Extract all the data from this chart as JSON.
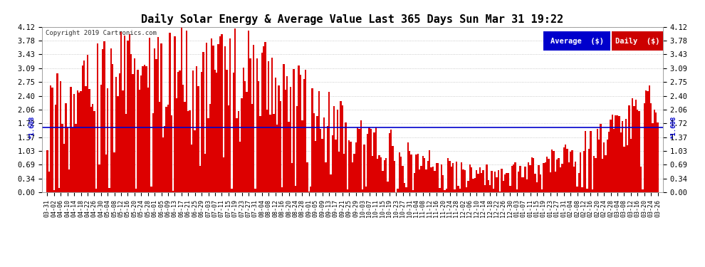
{
  "title": "Daily Solar Energy & Average Value Last 365 Days Sun Mar 31 19:22",
  "copyright": "Copyright 2019 Cartronics.com",
  "average_value": 1.608,
  "bar_color": "#dd0000",
  "average_line_color": "#0000cc",
  "background_color": "#ffffff",
  "plot_bg_color": "#ffffff",
  "yticks": [
    0.0,
    0.34,
    0.69,
    1.03,
    1.37,
    1.72,
    2.06,
    2.4,
    2.75,
    3.09,
    3.43,
    3.78,
    4.12
  ],
  "ylim": [
    0.0,
    4.12
  ],
  "legend_avg_color": "#0000cc",
  "legend_daily_color": "#cc0000",
  "legend_avg_text": "Average  ($)",
  "legend_daily_text": "Daily  ($)",
  "x_labels": [
    "03-31",
    "04-02",
    "04-06",
    "04-10",
    "04-14",
    "04-18",
    "04-22",
    "04-26",
    "04-30",
    "05-04",
    "05-08",
    "05-12",
    "05-16",
    "05-20",
    "05-24",
    "05-28",
    "06-01",
    "06-05",
    "06-09",
    "06-13",
    "06-17",
    "06-21",
    "06-25",
    "06-29",
    "07-03",
    "07-07",
    "07-11",
    "07-15",
    "07-19",
    "07-23",
    "07-27",
    "07-31",
    "08-04",
    "08-08",
    "08-12",
    "08-16",
    "08-20",
    "08-24",
    "08-28",
    "09-01",
    "09-05",
    "09-09",
    "09-13",
    "09-17",
    "09-21",
    "09-25",
    "09-29",
    "10-03",
    "10-07",
    "10-11",
    "10-15",
    "10-19",
    "10-23",
    "10-27",
    "10-31",
    "11-04",
    "11-08",
    "11-12",
    "11-16",
    "11-20",
    "11-24",
    "11-28",
    "12-02",
    "12-06",
    "12-10",
    "12-14",
    "12-18",
    "12-22",
    "12-26",
    "12-30",
    "01-03",
    "01-07",
    "01-11",
    "01-15",
    "01-19",
    "01-23",
    "01-27",
    "01-31",
    "02-04",
    "02-08",
    "02-12",
    "02-16",
    "02-20",
    "02-24",
    "02-28",
    "03-04",
    "03-08",
    "03-12",
    "03-16",
    "03-20",
    "03-24",
    "03-26"
  ],
  "n_bars": 365,
  "seed": 17,
  "avg_label": "*1.608"
}
